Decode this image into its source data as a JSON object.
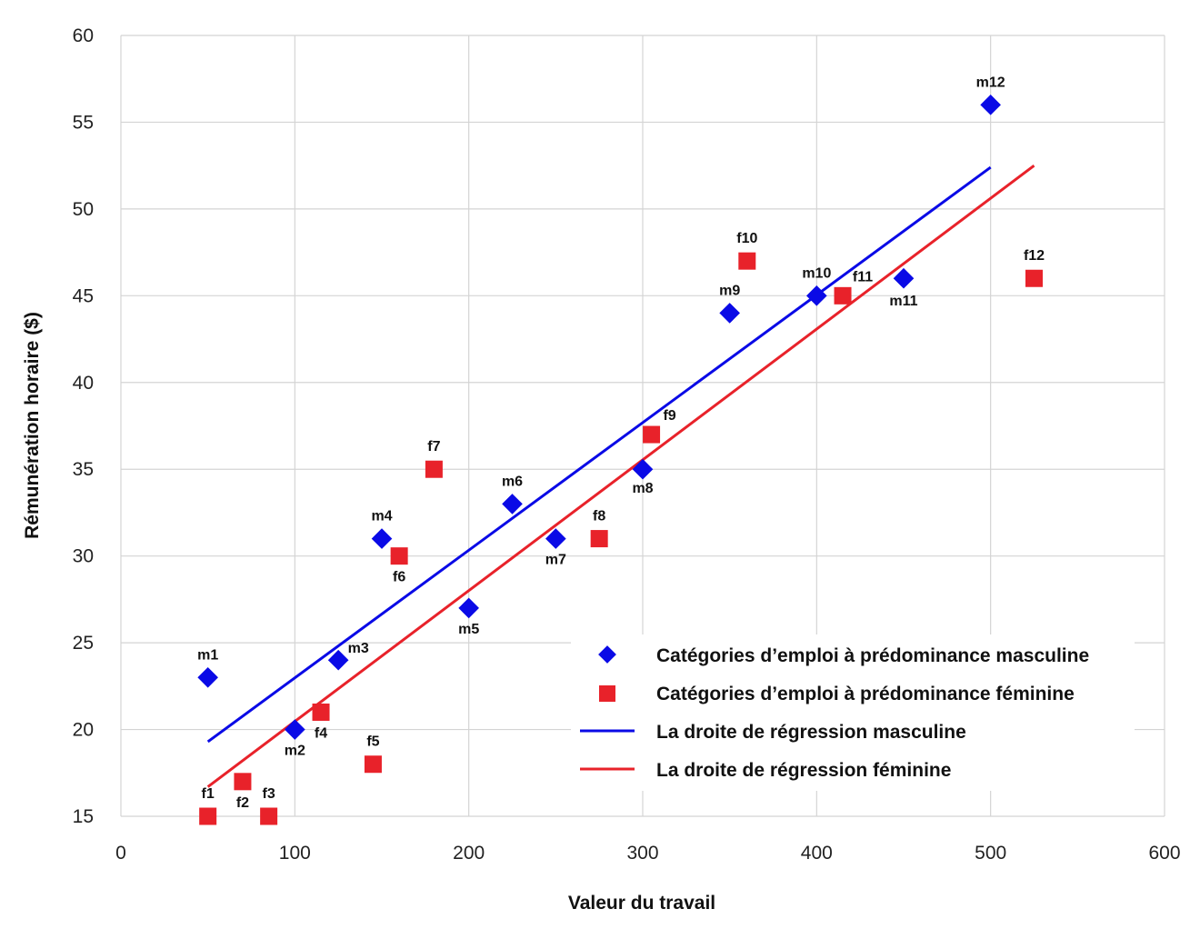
{
  "chart_data": {
    "type": "scatter",
    "title": "",
    "xlabel": "Valeur du travail",
    "ylabel": "Rémunération horaire ($)",
    "xlim": [
      0,
      600
    ],
    "ylim": [
      15,
      60
    ],
    "x_ticks": [
      0,
      100,
      200,
      300,
      400,
      500,
      600
    ],
    "y_ticks": [
      15,
      20,
      25,
      30,
      35,
      40,
      45,
      50,
      55,
      60
    ],
    "grid": true,
    "legend_position": "bottom-right",
    "series": [
      {
        "name": "Catégories d’emploi à prédominance masculine",
        "marker": "diamond",
        "color": "#0a0ae6",
        "points": [
          {
            "label": "m1",
            "x": 50,
            "y": 23
          },
          {
            "label": "m2",
            "x": 100,
            "y": 20
          },
          {
            "label": "m3",
            "x": 125,
            "y": 24
          },
          {
            "label": "m4",
            "x": 150,
            "y": 31
          },
          {
            "label": "m5",
            "x": 200,
            "y": 27
          },
          {
            "label": "m6",
            "x": 225,
            "y": 33
          },
          {
            "label": "m7",
            "x": 250,
            "y": 31
          },
          {
            "label": "m8",
            "x": 300,
            "y": 35
          },
          {
            "label": "m9",
            "x": 350,
            "y": 44
          },
          {
            "label": "m10",
            "x": 400,
            "y": 45
          },
          {
            "label": "m11",
            "x": 450,
            "y": 46
          },
          {
            "label": "m12",
            "x": 500,
            "y": 56
          }
        ]
      },
      {
        "name": "Catégories d’emploi à prédominance féminine",
        "marker": "square",
        "color": "#e8222a",
        "points": [
          {
            "label": "f1",
            "x": 50,
            "y": 15
          },
          {
            "label": "f2",
            "x": 70,
            "y": 17
          },
          {
            "label": "f3",
            "x": 85,
            "y": 15
          },
          {
            "label": "f4",
            "x": 115,
            "y": 21
          },
          {
            "label": "f5",
            "x": 145,
            "y": 18
          },
          {
            "label": "f6",
            "x": 160,
            "y": 30
          },
          {
            "label": "f7",
            "x": 180,
            "y": 35
          },
          {
            "label": "f8",
            "x": 275,
            "y": 31
          },
          {
            "label": "f9",
            "x": 305,
            "y": 37
          },
          {
            "label": "f10",
            "x": 360,
            "y": 47
          },
          {
            "label": "f11",
            "x": 415,
            "y": 45
          },
          {
            "label": "f12",
            "x": 525,
            "y": 46
          }
        ]
      }
    ],
    "lines": [
      {
        "name": "La droite de régression masculine",
        "color": "#0a0ae6",
        "x": [
          50,
          500
        ],
        "y": [
          19.3,
          52.4
        ]
      },
      {
        "name": "La droite de régression féminine",
        "color": "#e8222a",
        "x": [
          50,
          525
        ],
        "y": [
          16.7,
          52.5
        ]
      }
    ]
  }
}
